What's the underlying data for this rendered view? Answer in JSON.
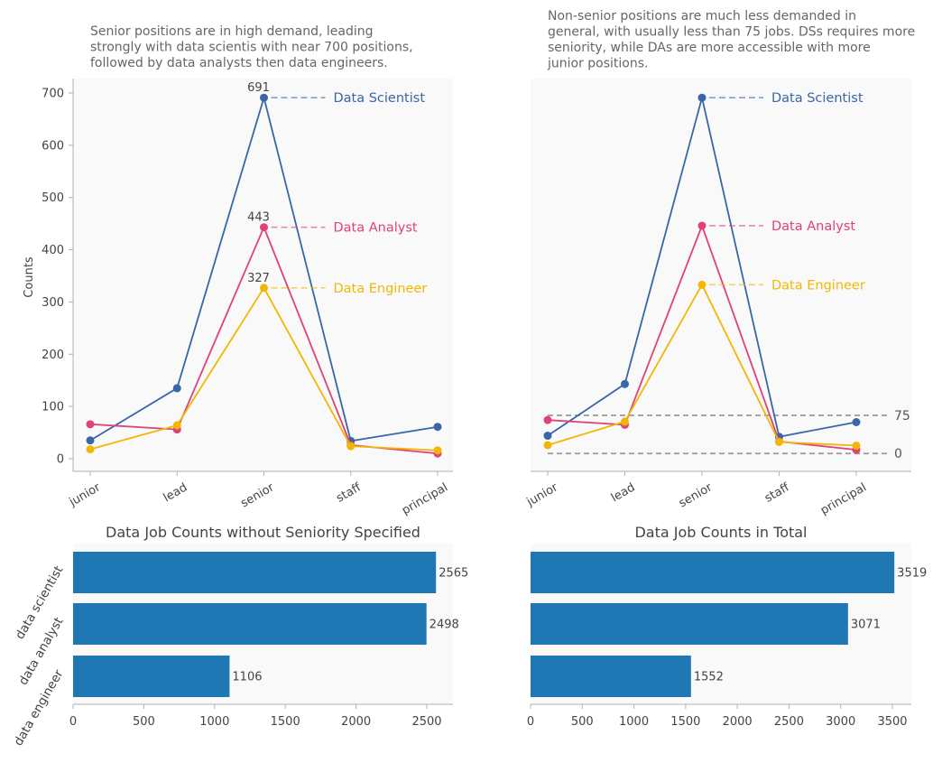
{
  "chart_data": [
    {
      "type": "line",
      "title": "Senior positions are in high demand, leading strongly with data scientis with near 700 positions, followed by data analysts then data engineers.",
      "title_lines": [
        "Senior positions are in high demand, leading",
        "strongly with data scientis with near 700 positions,",
        "followed by data analysts then data engineers."
      ],
      "xlabel": "",
      "ylabel": "Counts",
      "categories": [
        "junior",
        "lead",
        "senior",
        "staff",
        "principal"
      ],
      "ylim": [
        -25,
        728
      ],
      "yticks": [
        0,
        100,
        200,
        300,
        400,
        500,
        600,
        700
      ],
      "grid": false,
      "series": [
        {
          "name": "Data Scientist",
          "color": "#3866a8",
          "values": [
            35,
            135,
            691,
            34,
            61
          ]
        },
        {
          "name": "Data Analyst",
          "color": "#e0417a",
          "values": [
            66,
            56,
            443,
            26,
            10
          ]
        },
        {
          "name": "Data Engineer",
          "color": "#f2b705",
          "values": [
            18,
            64,
            327,
            24,
            16
          ]
        }
      ],
      "peak_labels": [
        "691",
        "443",
        "327"
      ]
    },
    {
      "type": "line",
      "title": "Non-senior positions are much less demanded in general, with usually less than 75 jobs. DSs requires more seniority, while DAs are more accessible with more junior positions.",
      "title_lines": [
        "Non-senior positions are much less demanded in",
        "general, with usually less than 75 jobs. DSs requires more",
        "seniority, while DAs are more accessible with more",
        "junior positions."
      ],
      "xlabel": "",
      "ylabel": "",
      "categories": [
        "junior",
        "lead",
        "senior",
        "staff",
        "principal"
      ],
      "ylim": [
        -25,
        728
      ],
      "grid": false,
      "series": [
        {
          "name": "Data Scientist",
          "color": "#3866a8",
          "values": [
            44,
            143,
            691,
            42,
            70
          ]
        },
        {
          "name": "Data Analyst",
          "color": "#e0417a",
          "values": [
            74,
            65,
            446,
            33,
            17
          ]
        },
        {
          "name": "Data Engineer",
          "color": "#f2b705",
          "values": [
            26,
            71,
            333,
            32,
            25
          ]
        }
      ],
      "reference_lines": [
        {
          "label": "75",
          "value": 83
        },
        {
          "label": "0",
          "value": 10
        }
      ]
    },
    {
      "type": "bar",
      "orientation": "horizontal",
      "title": "Data Job Counts without Seniority Specified",
      "categories": [
        "data scientist",
        "data analyst",
        "data engineer"
      ],
      "values": [
        2565,
        2498,
        1106
      ],
      "xlim": [
        0,
        2700
      ],
      "xticks": [
        0,
        500,
        1000,
        1500,
        2000,
        2500
      ],
      "color": "#1f77b4"
    },
    {
      "type": "bar",
      "orientation": "horizontal",
      "title": "Data Job Counts in Total",
      "categories": [
        "data scientist",
        "data analyst",
        "data engineer"
      ],
      "values": [
        3519,
        3071,
        1552
      ],
      "xlim": [
        0,
        3700
      ],
      "xticks": [
        0,
        500,
        1000,
        1500,
        2000,
        2500,
        3000,
        3500
      ],
      "color": "#1f77b4"
    }
  ]
}
